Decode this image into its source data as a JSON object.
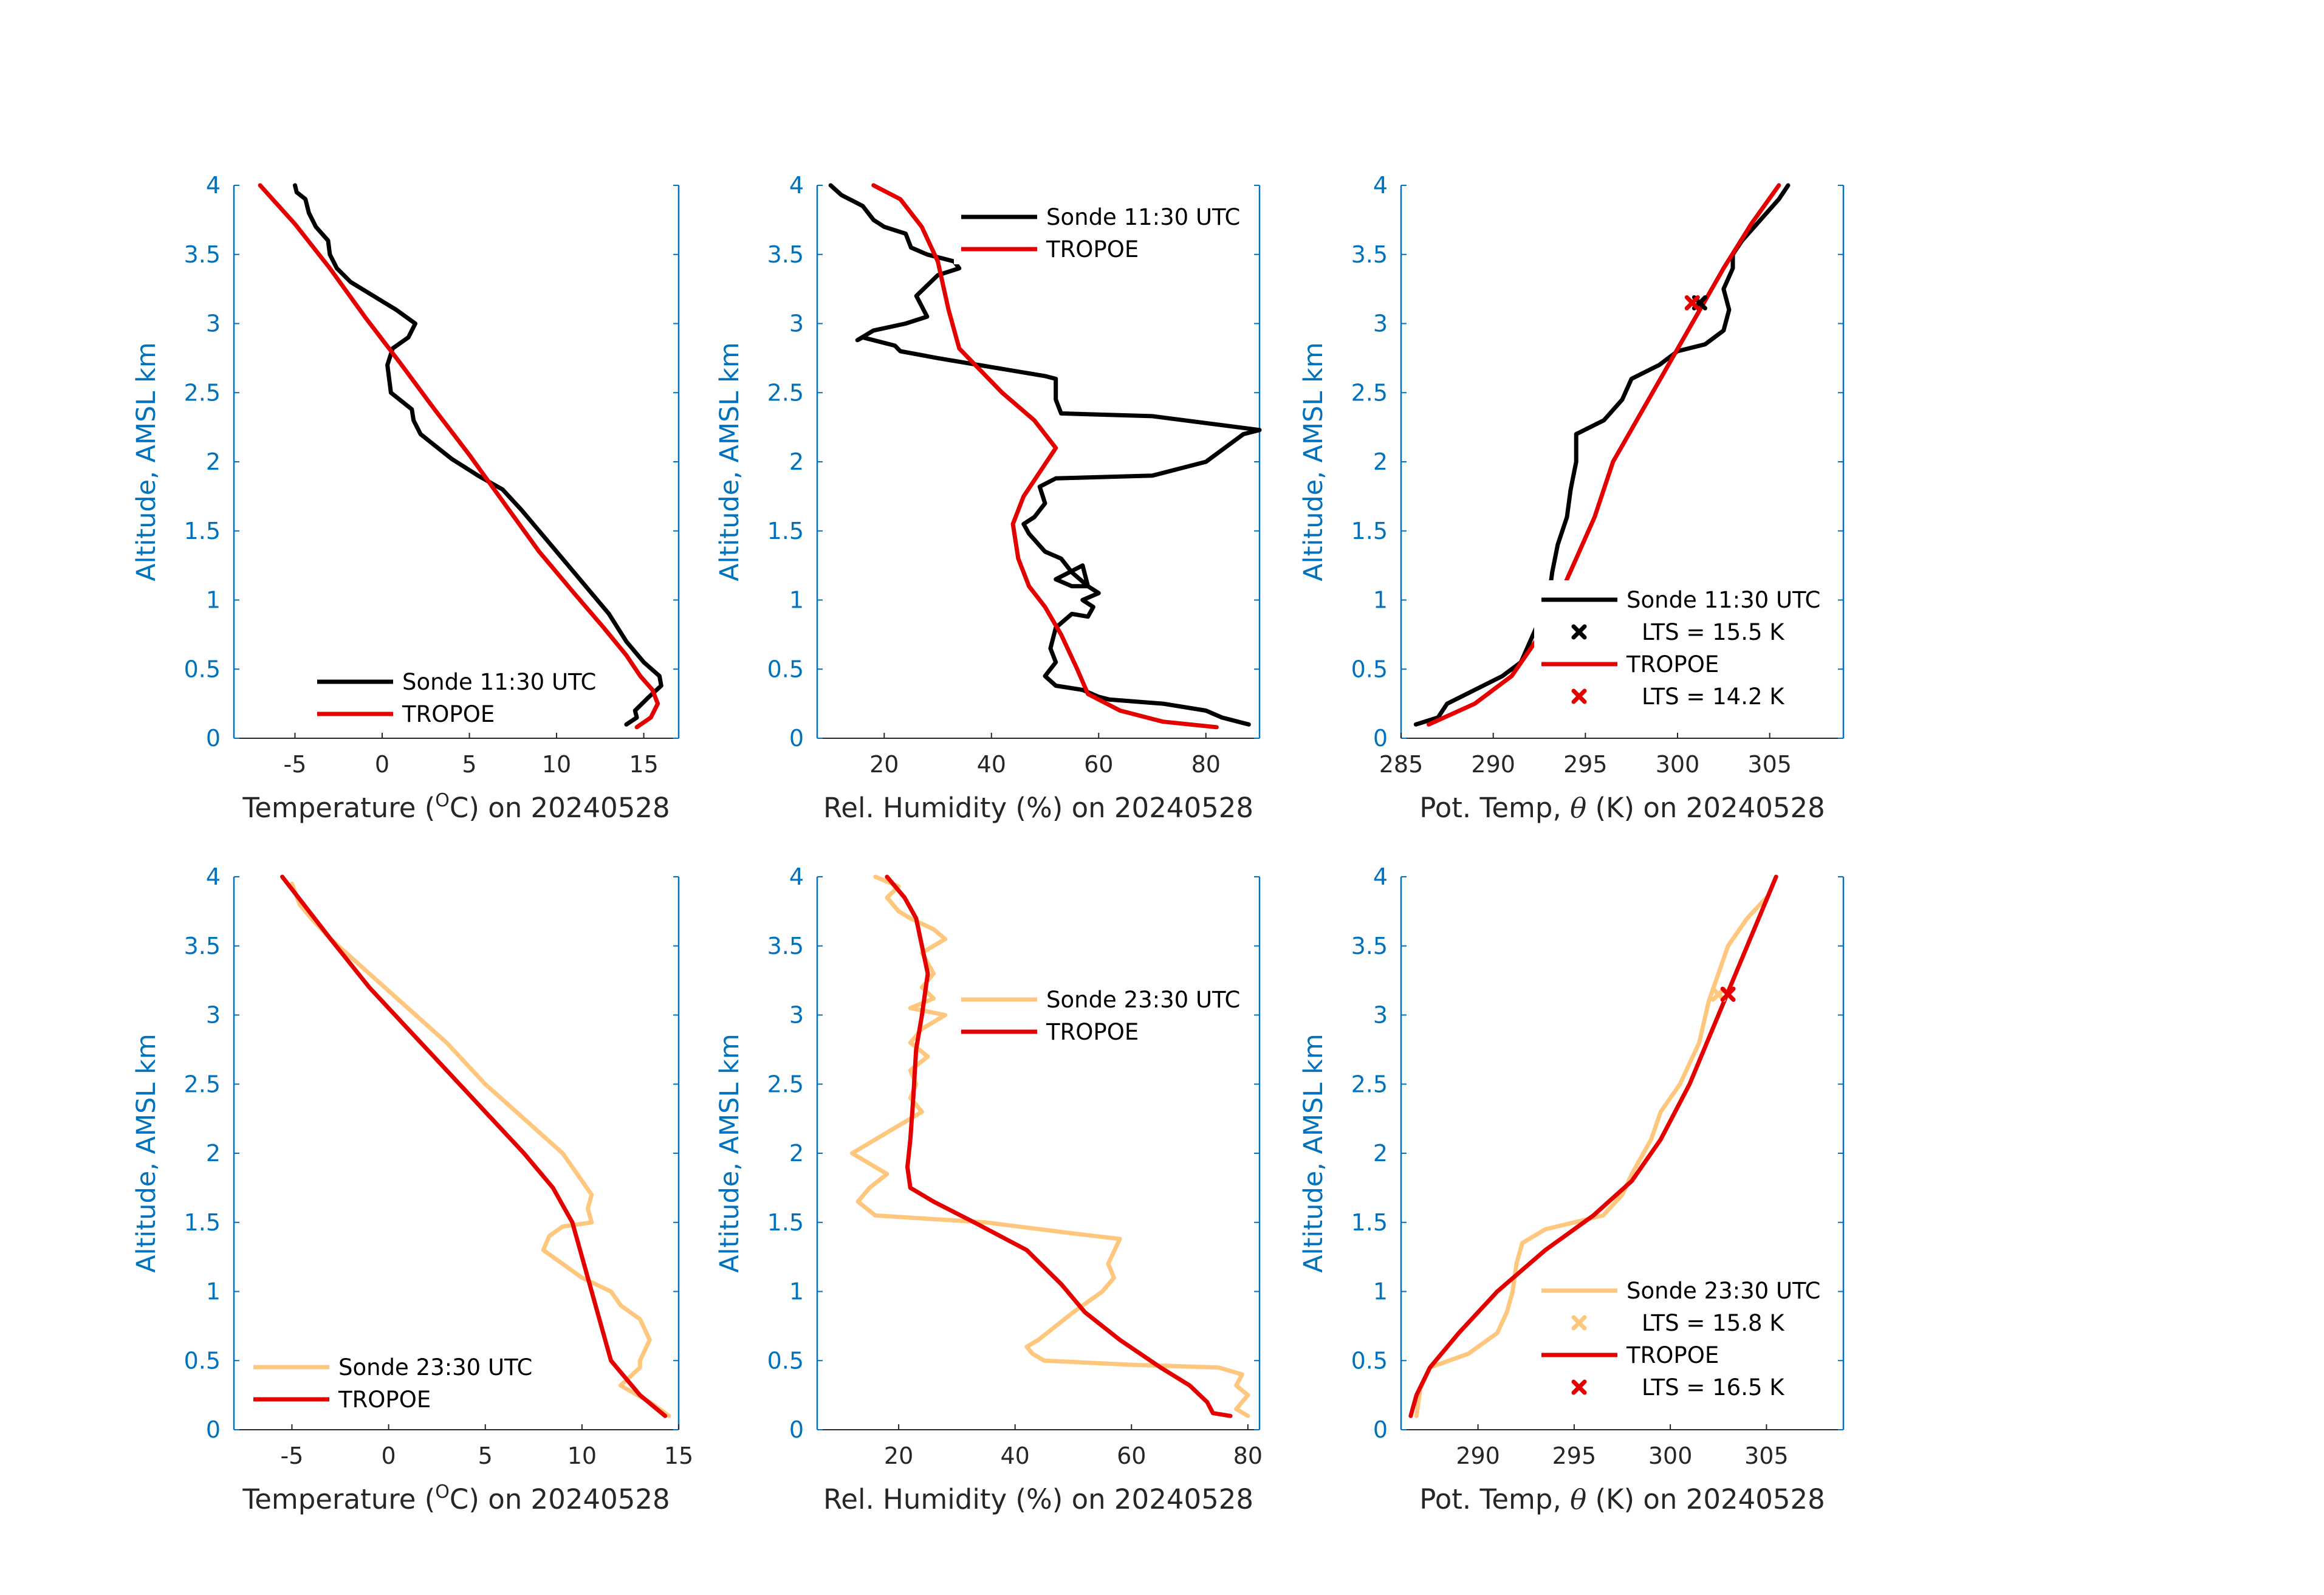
{
  "figure": {
    "background": "#ffffff",
    "axis_color": "#0072BD",
    "text_color": "#262626",
    "colors": {
      "sonde_day": "#000000",
      "sonde_night": "#FFC67D",
      "tropoe": "#E50000"
    }
  },
  "chart_data": [
    {
      "type": "line",
      "xlabel": "Temperature (",
      "xlabel_sup": "O",
      "xlabel_tail": "C) on 20240528",
      "ylabel": "Altitude, AMSL km",
      "xlim": [
        -8.5,
        17
      ],
      "ylim": [
        0,
        4
      ],
      "xticks": [
        -5,
        0,
        5,
        10,
        15
      ],
      "xtick_labels": [
        "-5",
        "0",
        "5",
        "10",
        "15"
      ],
      "yticks": [
        0,
        0.5,
        1,
        1.5,
        2,
        2.5,
        3,
        3.5,
        4
      ],
      "ytick_labels": [
        "0",
        "0.5",
        "1",
        "1.5",
        "2",
        "2.5",
        "3",
        "3.5",
        "4"
      ],
      "legend": "bottom-right",
      "series": [
        {
          "name": "Sonde 11:30 UTC",
          "color": "#000000",
          "x": [
            14.0,
            14.6,
            14.5,
            15.3,
            16.0,
            15.9,
            15.0,
            14.0,
            13.0,
            12.0,
            11.0,
            10.0,
            9.0,
            8.0,
            6.9,
            5.5,
            4.0,
            3.0,
            2.2,
            1.8,
            1.7,
            0.5,
            0.4,
            0.3,
            0.5,
            0.6,
            1.5,
            1.9,
            0.8,
            -0.5,
            -1.8,
            -2.6,
            -3.0,
            -3.1,
            -3.8,
            -4.2,
            -4.4,
            -4.9,
            -5.0
          ],
          "y": [
            0.1,
            0.15,
            0.2,
            0.3,
            0.38,
            0.45,
            0.55,
            0.7,
            0.9,
            1.05,
            1.2,
            1.35,
            1.5,
            1.65,
            1.8,
            1.9,
            2.02,
            2.12,
            2.2,
            2.3,
            2.38,
            2.5,
            2.6,
            2.7,
            2.78,
            2.82,
            2.9,
            3.0,
            3.1,
            3.2,
            3.3,
            3.4,
            3.5,
            3.6,
            3.7,
            3.8,
            3.9,
            3.95,
            4.0
          ]
        },
        {
          "name": "TROPOE",
          "color": "#E50000",
          "x": [
            14.6,
            15.4,
            15.8,
            15.5,
            14.8,
            14.0,
            12.7,
            11.0,
            9.0,
            7.0,
            5.0,
            3.0,
            1.0,
            -1.0,
            -3.0,
            -5.0,
            -7.0
          ],
          "y": [
            0.08,
            0.15,
            0.25,
            0.35,
            0.45,
            0.6,
            0.8,
            1.05,
            1.35,
            1.7,
            2.05,
            2.38,
            2.72,
            3.05,
            3.4,
            3.72,
            4.0
          ]
        }
      ],
      "markers": []
    },
    {
      "type": "line",
      "xlabel": "Rel. Humidity (%) on 20240528",
      "ylabel": "Altitude, AMSL km",
      "xlim": [
        7.5,
        90
      ],
      "ylim": [
        0,
        4
      ],
      "xticks": [
        20,
        40,
        60,
        80
      ],
      "xtick_labels": [
        "20",
        "40",
        "60",
        "80"
      ],
      "yticks": [
        0,
        0.5,
        1,
        1.5,
        2,
        2.5,
        3,
        3.5,
        4
      ],
      "ytick_labels": [
        "0",
        "0.5",
        "1",
        "1.5",
        "2",
        "2.5",
        "3",
        "3.5",
        "4"
      ],
      "legend": "top-right",
      "series": [
        {
          "name": "Sonde 11:30 UTC",
          "color": "#000000",
          "x": [
            88,
            83,
            80,
            72,
            62,
            60,
            57,
            52,
            50,
            52,
            51,
            52,
            55,
            58,
            59,
            57,
            60,
            58,
            55,
            52,
            57,
            58,
            55,
            53,
            50,
            47,
            46,
            48,
            50,
            49,
            52,
            70,
            80,
            87,
            90,
            70,
            53,
            52,
            52,
            50,
            30,
            23,
            22,
            16,
            15,
            18,
            24,
            28,
            26,
            30,
            34,
            33,
            28,
            25,
            24,
            20,
            18,
            16,
            12,
            10
          ],
          "y": [
            0.1,
            0.15,
            0.2,
            0.25,
            0.28,
            0.3,
            0.35,
            0.38,
            0.45,
            0.55,
            0.65,
            0.8,
            0.9,
            0.88,
            0.95,
            1.0,
            1.05,
            1.1,
            1.1,
            1.15,
            1.25,
            1.1,
            1.2,
            1.3,
            1.35,
            1.48,
            1.55,
            1.6,
            1.7,
            1.82,
            1.88,
            1.9,
            2.0,
            2.2,
            2.23,
            2.33,
            2.35,
            2.45,
            2.6,
            2.62,
            2.75,
            2.8,
            2.84,
            2.9,
            2.88,
            2.95,
            3.0,
            3.05,
            3.2,
            3.35,
            3.4,
            3.45,
            3.5,
            3.55,
            3.65,
            3.7,
            3.75,
            3.85,
            3.93,
            4.0
          ]
        },
        {
          "name": "TROPOE",
          "color": "#E50000",
          "x": [
            82,
            72,
            64,
            58,
            56,
            53,
            50,
            47,
            45,
            44,
            46,
            52,
            48,
            42,
            37,
            34,
            32,
            30,
            27,
            23,
            18
          ],
          "y": [
            0.08,
            0.12,
            0.2,
            0.32,
            0.5,
            0.75,
            0.95,
            1.1,
            1.3,
            1.55,
            1.75,
            2.1,
            2.3,
            2.5,
            2.7,
            2.82,
            3.1,
            3.45,
            3.7,
            3.9,
            4.0
          ]
        }
      ],
      "markers": []
    },
    {
      "type": "line",
      "xlabel": "Pot. Temp, ",
      "xlabel_theta": "θ",
      "xlabel_tail": " (K) on 20240528",
      "ylabel": "Altitude, AMSL km",
      "xlim": [
        285,
        309
      ],
      "ylim": [
        0,
        4
      ],
      "xticks": [
        285,
        290,
        295,
        300,
        305
      ],
      "xtick_labels": [
        "285",
        "290",
        "295",
        "300",
        "305"
      ],
      "yticks": [
        0,
        0.5,
        1,
        1.5,
        2,
        2.5,
        3,
        3.5,
        4
      ],
      "ytick_labels": [
        "0",
        "0.5",
        "1",
        "1.5",
        "2",
        "2.5",
        "3",
        "3.5",
        "4"
      ],
      "legend": "bottom-right",
      "series": [
        {
          "name": "Sonde 11:30 UTC",
          "color": "#000000",
          "x": [
            285.8,
            287.0,
            287.5,
            289.0,
            290.5,
            291.5,
            292.0,
            292.5,
            293.0,
            293.2,
            293.5,
            294.0,
            294.2,
            294.5,
            294.5,
            296.0,
            297.0,
            297.5,
            299.0,
            300.0,
            301.5,
            302.5,
            302.8,
            302.5,
            303.0,
            303.0,
            303.5,
            304.5,
            305.5,
            306.0
          ],
          "y": [
            0.1,
            0.15,
            0.25,
            0.35,
            0.45,
            0.55,
            0.7,
            0.85,
            1.0,
            1.2,
            1.4,
            1.6,
            1.8,
            2.0,
            2.2,
            2.3,
            2.45,
            2.6,
            2.7,
            2.8,
            2.85,
            2.95,
            3.1,
            3.25,
            3.4,
            3.5,
            3.6,
            3.75,
            3.9,
            4.0
          ]
        },
        {
          "name": "TROPOE",
          "color": "#E50000",
          "x": [
            286.5,
            289.0,
            291.0,
            292.3,
            293.5,
            294.5,
            295.5,
            296.5,
            298.0,
            299.5,
            301.0,
            302.5,
            304.0,
            305.5
          ],
          "y": [
            0.1,
            0.25,
            0.45,
            0.7,
            1.0,
            1.3,
            1.6,
            2.0,
            2.35,
            2.7,
            3.05,
            3.4,
            3.72,
            4.0
          ]
        }
      ],
      "markers": [
        {
          "x": 301.2,
          "y": 3.15,
          "color": "#000000"
        },
        {
          "x": 300.8,
          "y": 3.15,
          "color": "#E50000"
        }
      ],
      "legend_entries": [
        {
          "kind": "line",
          "label": "Sonde 11:30 UTC",
          "color": "#000000"
        },
        {
          "kind": "marker",
          "label": "LTS = 15.5 K",
          "color": "#000000"
        },
        {
          "kind": "line",
          "label": "TROPOE",
          "color": "#E50000"
        },
        {
          "kind": "marker",
          "label": "LTS = 14.2 K",
          "color": "#E50000"
        }
      ]
    },
    {
      "type": "line",
      "xlabel": "Temperature (",
      "xlabel_sup": "O",
      "xlabel_tail": "C) on 20240528",
      "ylabel": "Altitude, AMSL km",
      "xlim": [
        -8,
        15
      ],
      "ylim": [
        0,
        4
      ],
      "xticks": [
        -5,
        0,
        5,
        10,
        15
      ],
      "xtick_labels": [
        "-5",
        "0",
        "5",
        "10",
        "15"
      ],
      "yticks": [
        0,
        0.5,
        1,
        1.5,
        2,
        2.5,
        3,
        3.5,
        4
      ],
      "ytick_labels": [
        "0",
        "0.5",
        "1",
        "1.5",
        "2",
        "2.5",
        "3",
        "3.5",
        "4"
      ],
      "legend": "bottom-left",
      "series": [
        {
          "name": "Sonde 23:30 UTC",
          "color": "#FFC67D",
          "x": [
            14.5,
            13.5,
            12.0,
            13.0,
            13.0,
            13.5,
            13.0,
            12.0,
            11.5,
            10.0,
            9.0,
            8.0,
            8.3,
            9.0,
            10.5,
            10.3,
            10.5,
            9.5,
            9.0,
            7.0,
            5.0,
            3.0,
            1.0,
            -1.0,
            -3.0,
            -4.0,
            -4.6,
            -5.0
          ],
          "y": [
            0.1,
            0.2,
            0.32,
            0.45,
            0.5,
            0.65,
            0.8,
            0.9,
            1.0,
            1.1,
            1.2,
            1.3,
            1.4,
            1.47,
            1.5,
            1.6,
            1.7,
            1.9,
            2.0,
            2.25,
            2.5,
            2.8,
            3.05,
            3.3,
            3.55,
            3.7,
            3.8,
            3.95
          ]
        },
        {
          "name": "TROPOE",
          "color": "#E50000",
          "x": [
            14.3,
            13.0,
            11.5,
            11.0,
            10.5,
            10.0,
            9.5,
            8.5,
            7.0,
            5.0,
            3.0,
            1.0,
            -1.0,
            -3.0,
            -5.5
          ],
          "y": [
            0.1,
            0.25,
            0.5,
            0.75,
            1.0,
            1.25,
            1.5,
            1.75,
            2.0,
            2.3,
            2.6,
            2.9,
            3.2,
            3.55,
            4.0
          ]
        }
      ],
      "markers": []
    },
    {
      "type": "line",
      "xlabel": "Rel. Humidity (%) on 20240528",
      "ylabel": "Altitude, AMSL km",
      "xlim": [
        6,
        82
      ],
      "ylim": [
        0,
        4
      ],
      "xticks": [
        20,
        40,
        60,
        80
      ],
      "xtick_labels": [
        "20",
        "40",
        "60",
        "80"
      ],
      "yticks": [
        0,
        0.5,
        1,
        1.5,
        2,
        2.5,
        3,
        3.5,
        4
      ],
      "ytick_labels": [
        "0",
        "0.5",
        "1",
        "1.5",
        "2",
        "2.5",
        "3",
        "3.5",
        "4"
      ],
      "legend": "top-right",
      "series": [
        {
          "name": "Sonde 23:30 UTC",
          "color": "#FFC67D",
          "x": [
            80,
            78,
            80,
            78,
            79,
            75,
            60,
            45,
            43,
            42,
            44,
            47,
            50,
            55,
            57,
            56,
            58,
            50,
            35,
            16,
            13,
            15,
            18,
            14,
            12,
            16,
            20,
            24,
            22,
            23,
            22,
            25,
            22,
            24,
            28,
            22,
            26,
            24,
            26,
            24,
            28,
            26,
            22,
            20,
            18,
            20,
            16
          ],
          "y": [
            0.1,
            0.15,
            0.25,
            0.32,
            0.4,
            0.45,
            0.47,
            0.5,
            0.55,
            0.6,
            0.65,
            0.75,
            0.85,
            1.0,
            1.1,
            1.2,
            1.38,
            1.42,
            1.5,
            1.55,
            1.65,
            1.75,
            1.85,
            1.95,
            2.0,
            2.1,
            2.2,
            2.3,
            2.4,
            2.5,
            2.6,
            2.7,
            2.8,
            2.9,
            3.0,
            3.05,
            3.12,
            3.2,
            3.3,
            3.45,
            3.55,
            3.62,
            3.7,
            3.75,
            3.85,
            3.93,
            4.0
          ]
        },
        {
          "name": "TROPOE",
          "color": "#E50000",
          "x": [
            77,
            74,
            73,
            70,
            65,
            58,
            52,
            48,
            42,
            33,
            26,
            22,
            21.5,
            22,
            22.5,
            23,
            24,
            25,
            24,
            23,
            21,
            18
          ],
          "y": [
            0.1,
            0.12,
            0.2,
            0.32,
            0.45,
            0.65,
            0.85,
            1.05,
            1.3,
            1.5,
            1.65,
            1.75,
            1.9,
            2.1,
            2.4,
            2.75,
            3.0,
            3.3,
            3.5,
            3.7,
            3.85,
            4.0
          ]
        }
      ],
      "markers": []
    },
    {
      "type": "line",
      "xlabel": "Pot. Temp, ",
      "xlabel_theta": "θ",
      "xlabel_tail": " (K) on 20240528",
      "ylabel": "Altitude, AMSL km",
      "xlim": [
        286,
        309
      ],
      "ylim": [
        0,
        4
      ],
      "xticks": [
        290,
        295,
        300,
        305
      ],
      "xtick_labels": [
        "290",
        "295",
        "300",
        "305"
      ],
      "yticks": [
        0,
        0.5,
        1,
        1.5,
        2,
        2.5,
        3,
        3.5,
        4
      ],
      "ytick_labels": [
        "0",
        "0.5",
        "1",
        "1.5",
        "2",
        "2.5",
        "3",
        "3.5",
        "4"
      ],
      "legend": "bottom-right",
      "series": [
        {
          "name": "Sonde 23:30 UTC",
          "color": "#FFC67D",
          "x": [
            286.8,
            287.0,
            287.5,
            289.5,
            291.0,
            291.5,
            291.8,
            292.0,
            292.3,
            293.5,
            296.5,
            297.5,
            298.0,
            299.0,
            299.5,
            300.5,
            301.5,
            302.0,
            302.5,
            303.0,
            304.0,
            305.0
          ],
          "y": [
            0.1,
            0.3,
            0.45,
            0.55,
            0.7,
            0.85,
            1.0,
            1.2,
            1.35,
            1.45,
            1.55,
            1.7,
            1.85,
            2.1,
            2.3,
            2.5,
            2.8,
            3.1,
            3.3,
            3.5,
            3.7,
            3.85
          ]
        },
        {
          "name": "TROPOE",
          "color": "#E50000",
          "x": [
            286.5,
            286.8,
            287.5,
            289.0,
            291.0,
            293.5,
            296.0,
            298.0,
            299.5,
            301.0,
            302.5,
            304.0,
            305.5
          ],
          "y": [
            0.1,
            0.25,
            0.45,
            0.7,
            1.0,
            1.3,
            1.55,
            1.8,
            2.1,
            2.5,
            3.0,
            3.5,
            4.0
          ]
        }
      ],
      "markers": [
        {
          "x": 302.5,
          "y": 3.15,
          "color": "#FFC67D"
        },
        {
          "x": 303.0,
          "y": 3.15,
          "color": "#E50000"
        }
      ],
      "legend_entries": [
        {
          "kind": "line",
          "label": "Sonde 23:30 UTC",
          "color": "#FFC67D"
        },
        {
          "kind": "marker",
          "label": "LTS = 15.8 K",
          "color": "#FFC67D"
        },
        {
          "kind": "line",
          "label": "TROPOE",
          "color": "#E50000"
        },
        {
          "kind": "marker",
          "label": "LTS = 16.5 K",
          "color": "#E50000"
        }
      ]
    }
  ]
}
